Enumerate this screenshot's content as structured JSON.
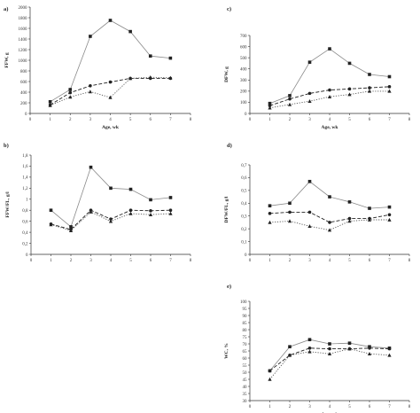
{
  "chart_data": [
    {
      "panel": "a)",
      "type": "line",
      "ylabel": "FFW, g",
      "xlabel": "Age, wk",
      "xlim": [
        0,
        8
      ],
      "ylim": [
        0,
        2000
      ],
      "yticks": [
        0,
        200,
        400,
        600,
        800,
        1000,
        1200,
        1400,
        1600,
        1800,
        2000
      ],
      "yticklabels": [
        "0",
        "200",
        "400",
        "600",
        "800",
        "1000",
        "1200",
        "1400",
        "1600",
        "1800",
        "2000"
      ],
      "xticks": [
        0,
        1,
        2,
        3,
        4,
        5,
        6,
        7,
        8
      ],
      "xticklabels": [
        "0",
        "1",
        "2",
        "3",
        "4",
        "5",
        "6",
        "7",
        "8"
      ],
      "series": [
        {
          "style": "solid",
          "marker": "square",
          "x": [
            1,
            2,
            3,
            4,
            5,
            6,
            7
          ],
          "values": [
            220,
            450,
            1450,
            1750,
            1540,
            1080,
            1040
          ]
        },
        {
          "style": "dashed",
          "marker": "circle",
          "x": [
            1,
            2,
            3,
            4,
            5,
            6,
            7
          ],
          "values": [
            160,
            390,
            520,
            590,
            660,
            660,
            660
          ]
        },
        {
          "style": "dotted",
          "marker": "triangle",
          "x": [
            1,
            2,
            3,
            4,
            5,
            6,
            7
          ],
          "values": [
            150,
            310,
            410,
            300,
            660,
            680,
            670
          ]
        }
      ]
    },
    {
      "panel": "c)",
      "type": "line",
      "ylabel": "DFW, g",
      "xlabel": "Age, wk",
      "xlim": [
        0,
        8
      ],
      "ylim": [
        0,
        700
      ],
      "yticks": [
        0,
        100,
        200,
        300,
        400,
        500,
        600,
        700
      ],
      "yticklabels": [
        "0",
        "100",
        "200",
        "300",
        "400",
        "500",
        "600",
        "700"
      ],
      "xticks": [
        0,
        1,
        2,
        3,
        4,
        5,
        6,
        7,
        8
      ],
      "xticklabels": [
        "0",
        "1",
        "2",
        "3",
        "4",
        "5",
        "6",
        "7",
        "8"
      ],
      "series": [
        {
          "style": "solid",
          "marker": "square",
          "x": [
            1,
            2,
            3,
            4,
            5,
            6,
            7
          ],
          "values": [
            90,
            160,
            460,
            580,
            450,
            350,
            330
          ]
        },
        {
          "style": "dashed",
          "marker": "circle",
          "x": [
            1,
            2,
            3,
            4,
            5,
            6,
            7
          ],
          "values": [
            70,
            130,
            180,
            210,
            220,
            230,
            240
          ]
        },
        {
          "style": "dotted",
          "marker": "triangle",
          "x": [
            1,
            2,
            3,
            4,
            5,
            6,
            7
          ],
          "values": [
            50,
            80,
            110,
            150,
            170,
            200,
            200
          ]
        }
      ]
    },
    {
      "panel": "b)",
      "type": "line",
      "ylabel": "FFW/FL, g/l",
      "xlabel": "",
      "xlim": [
        0,
        8
      ],
      "ylim": [
        0,
        1.8
      ],
      "yticks": [
        0,
        0.2,
        0.4,
        0.6,
        0.8,
        1.0,
        1.2,
        1.4,
        1.6,
        1.8
      ],
      "yticklabels": [
        "0",
        "0,2",
        "0,4",
        "0,6",
        "0,8",
        "1",
        "1,2",
        "1,4",
        "1,6",
        "1,8"
      ],
      "xticks": [
        0,
        1,
        2,
        3,
        4,
        5,
        6,
        7,
        8
      ],
      "xticklabels": [
        "0",
        "1",
        "2",
        "3",
        "4",
        "5",
        "6",
        "7",
        "8"
      ],
      "series": [
        {
          "style": "solid",
          "marker": "square",
          "x": [
            1,
            2,
            3,
            4,
            5,
            6,
            7
          ],
          "values": [
            0.8,
            0.5,
            1.58,
            1.2,
            1.18,
            0.99,
            1.03
          ]
        },
        {
          "style": "dashed",
          "marker": "circle",
          "x": [
            1,
            2,
            3,
            4,
            5,
            6,
            7
          ],
          "values": [
            0.55,
            0.45,
            0.8,
            0.64,
            0.8,
            0.79,
            0.8
          ]
        },
        {
          "style": "dotted",
          "marker": "triangle",
          "x": [
            1,
            2,
            3,
            4,
            5,
            6,
            7
          ],
          "values": [
            0.54,
            0.43,
            0.77,
            0.6,
            0.74,
            0.72,
            0.74
          ]
        }
      ]
    },
    {
      "panel": "d)",
      "type": "line",
      "ylabel": "DFW/FL, g/l",
      "xlabel": "",
      "xlim": [
        0,
        8
      ],
      "ylim": [
        0,
        0.7
      ],
      "yticks": [
        0,
        0.1,
        0.2,
        0.3,
        0.4,
        0.5,
        0.6,
        0.7
      ],
      "yticklabels": [
        "0",
        "0,1",
        "0,2",
        "0,3",
        "0,4",
        "0,5",
        "0,6",
        "0,7"
      ],
      "xticks": [
        0,
        1,
        2,
        3,
        4,
        5,
        6,
        7,
        8
      ],
      "xticklabels": [
        "0",
        "1",
        "2",
        "3",
        "4",
        "5",
        "6",
        "7",
        "8"
      ],
      "series": [
        {
          "style": "solid",
          "marker": "square",
          "x": [
            1,
            2,
            3,
            4,
            5,
            6,
            7
          ],
          "values": [
            0.38,
            0.4,
            0.57,
            0.45,
            0.41,
            0.36,
            0.37
          ]
        },
        {
          "style": "dashed",
          "marker": "circle",
          "x": [
            1,
            2,
            3,
            4,
            5,
            6,
            7
          ],
          "values": [
            0.32,
            0.33,
            0.33,
            0.25,
            0.28,
            0.28,
            0.31
          ]
        },
        {
          "style": "dotted",
          "marker": "triangle",
          "x": [
            1,
            2,
            3,
            4,
            5,
            6,
            7
          ],
          "values": [
            0.25,
            0.26,
            0.22,
            0.19,
            0.26,
            0.27,
            0.27
          ]
        }
      ]
    },
    {
      "panel": "e)",
      "type": "line",
      "ylabel": "WC, %",
      "xlabel": "Age, wk",
      "xlim": [
        0,
        8
      ],
      "ylim": [
        30,
        100
      ],
      "yticks": [
        30,
        35,
        40,
        45,
        50,
        55,
        60,
        65,
        70,
        75,
        80,
        85,
        90,
        95,
        100
      ],
      "yticklabels": [
        "30",
        "35",
        "40",
        "45",
        "50",
        "55",
        "60",
        "65",
        "70",
        "75",
        "80",
        "85",
        "90",
        "95",
        "100"
      ],
      "xticks": [
        0,
        1,
        2,
        3,
        4,
        5,
        6,
        7,
        8
      ],
      "xticklabels": [
        "0",
        "1",
        "2",
        "3",
        "4",
        "5",
        "6",
        "7",
        "8"
      ],
      "series": [
        {
          "style": "solid",
          "marker": "square",
          "x": [
            1,
            2,
            3,
            4,
            5,
            6,
            7
          ],
          "values": [
            51,
            68,
            73,
            70,
            70.5,
            68,
            67
          ]
        },
        {
          "style": "dashed",
          "marker": "circle",
          "x": [
            1,
            2,
            3,
            4,
            5,
            6,
            7
          ],
          "values": [
            51,
            62,
            67,
            66.5,
            66.5,
            67,
            66.5
          ]
        },
        {
          "style": "dotted",
          "marker": "triangle",
          "x": [
            1,
            2,
            3,
            4,
            5,
            6,
            7
          ],
          "values": [
            45,
            62,
            64.5,
            63,
            66.5,
            63,
            62
          ]
        }
      ]
    }
  ]
}
